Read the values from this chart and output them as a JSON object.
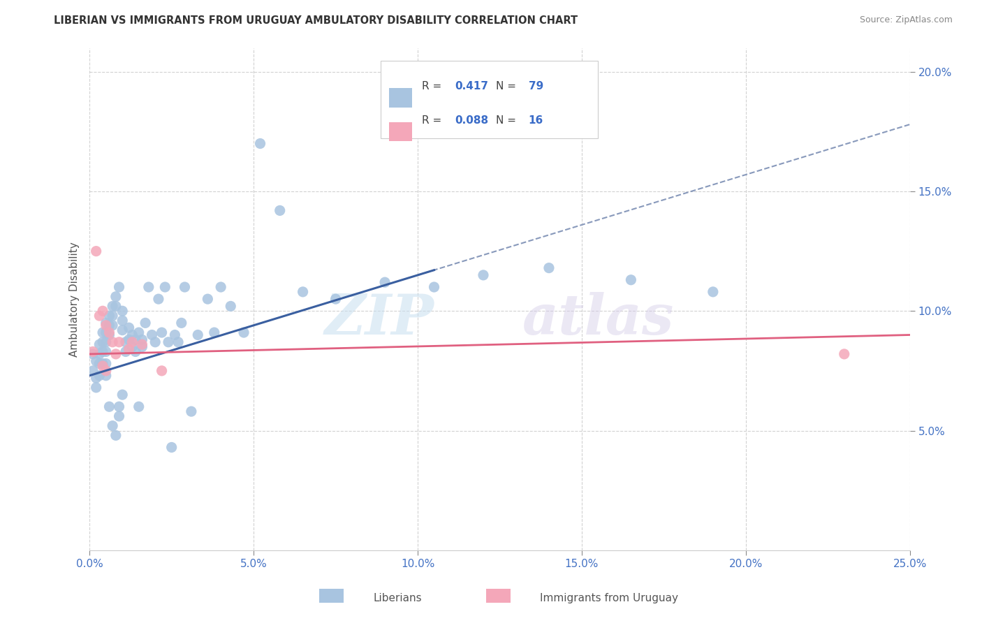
{
  "title": "LIBERIAN VS IMMIGRANTS FROM URUGUAY AMBULATORY DISABILITY CORRELATION CHART",
  "source": "Source: ZipAtlas.com",
  "ylabel": "Ambulatory Disability",
  "xlim": [
    0.0,
    0.25
  ],
  "ylim": [
    0.0,
    0.21
  ],
  "xticks": [
    0.0,
    0.05,
    0.1,
    0.15,
    0.2,
    0.25
  ],
  "yticks": [
    0.05,
    0.1,
    0.15,
    0.2
  ],
  "xticklabels": [
    "0.0%",
    "5.0%",
    "10.0%",
    "15.0%",
    "20.0%",
    "25.0%"
  ],
  "yticklabels": [
    "5.0%",
    "10.0%",
    "15.0%",
    "20.0%"
  ],
  "liberian_color": "#a8c4e0",
  "uruguay_color": "#f4a7b9",
  "blue_line_color": "#3a5fa0",
  "pink_line_color": "#e06080",
  "dash_color": "#aaaacc",
  "R_liberian": "0.417",
  "N_liberian": "79",
  "R_uruguay": "0.088",
  "N_uruguay": "16",
  "lib_x": [
    0.001,
    0.001,
    0.002,
    0.002,
    0.002,
    0.003,
    0.003,
    0.003,
    0.003,
    0.004,
    0.004,
    0.004,
    0.004,
    0.005,
    0.005,
    0.005,
    0.005,
    0.005,
    0.005,
    0.006,
    0.006,
    0.006,
    0.006,
    0.007,
    0.007,
    0.007,
    0.007,
    0.008,
    0.008,
    0.008,
    0.009,
    0.009,
    0.009,
    0.01,
    0.01,
    0.01,
    0.01,
    0.011,
    0.011,
    0.012,
    0.012,
    0.013,
    0.013,
    0.014,
    0.014,
    0.015,
    0.015,
    0.016,
    0.016,
    0.017,
    0.018,
    0.019,
    0.02,
    0.021,
    0.022,
    0.023,
    0.024,
    0.025,
    0.026,
    0.027,
    0.028,
    0.029,
    0.031,
    0.033,
    0.036,
    0.038,
    0.04,
    0.043,
    0.047,
    0.052,
    0.058,
    0.065,
    0.075,
    0.09,
    0.105,
    0.12,
    0.14,
    0.165,
    0.19
  ],
  "lib_y": [
    0.075,
    0.082,
    0.079,
    0.072,
    0.068,
    0.086,
    0.082,
    0.078,
    0.073,
    0.091,
    0.087,
    0.083,
    0.078,
    0.095,
    0.091,
    0.087,
    0.083,
    0.078,
    0.073,
    0.098,
    0.094,
    0.09,
    0.06,
    0.102,
    0.098,
    0.094,
    0.052,
    0.106,
    0.102,
    0.048,
    0.11,
    0.056,
    0.06,
    0.1,
    0.096,
    0.092,
    0.065,
    0.087,
    0.083,
    0.093,
    0.088,
    0.09,
    0.085,
    0.088,
    0.083,
    0.091,
    0.06,
    0.088,
    0.085,
    0.095,
    0.11,
    0.09,
    0.087,
    0.105,
    0.091,
    0.11,
    0.087,
    0.043,
    0.09,
    0.087,
    0.095,
    0.11,
    0.058,
    0.09,
    0.105,
    0.091,
    0.11,
    0.102,
    0.091,
    0.17,
    0.142,
    0.108,
    0.105,
    0.112,
    0.11,
    0.115,
    0.118,
    0.113,
    0.108
  ],
  "uru_x": [
    0.001,
    0.002,
    0.003,
    0.004,
    0.004,
    0.005,
    0.005,
    0.006,
    0.007,
    0.008,
    0.009,
    0.012,
    0.013,
    0.016,
    0.022,
    0.23
  ],
  "uru_y": [
    0.083,
    0.125,
    0.098,
    0.1,
    0.077,
    0.094,
    0.075,
    0.091,
    0.087,
    0.082,
    0.087,
    0.084,
    0.087,
    0.086,
    0.075,
    0.082
  ]
}
